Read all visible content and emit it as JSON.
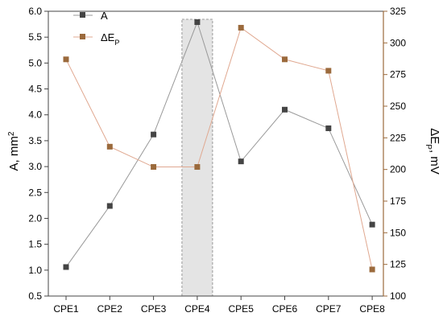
{
  "chart_data": {
    "type": "line",
    "categories": [
      "CPE1",
      "CPE2",
      "CPE3",
      "CPE4",
      "CPE5",
      "CPE6",
      "CPE7",
      "CPE8"
    ],
    "highlight_category": "CPE4",
    "y_left": {
      "label": "A, mm",
      "label_sup": "2",
      "lim": [
        0.5,
        6.0
      ],
      "ticks": [
        "0.5",
        "1.0",
        "1.5",
        "2.0",
        "2.5",
        "3.0",
        "3.5",
        "4.0",
        "4.5",
        "5.0",
        "5.5",
        "6.0"
      ]
    },
    "y_right": {
      "label": "ΔE",
      "label_sub": "P",
      "label_tail": ", mV",
      "lim": [
        100,
        325
      ],
      "ticks": [
        "100",
        "125",
        "150",
        "175",
        "200",
        "225",
        "250",
        "275",
        "300",
        "325"
      ]
    },
    "series": [
      {
        "name": "A",
        "axis": "left",
        "color": "#444444",
        "line_color": "#999999",
        "values": [
          1.06,
          2.24,
          3.62,
          5.79,
          3.1,
          4.1,
          3.74,
          1.88
        ]
      },
      {
        "name": "ΔE",
        "name_sub": "P",
        "axis": "right",
        "color": "#9b6a3c",
        "line_color": "#e0a890",
        "values": [
          287,
          218,
          202,
          202,
          312,
          287,
          278,
          121
        ]
      }
    ],
    "legend_position": "top-left",
    "grid": false
  }
}
